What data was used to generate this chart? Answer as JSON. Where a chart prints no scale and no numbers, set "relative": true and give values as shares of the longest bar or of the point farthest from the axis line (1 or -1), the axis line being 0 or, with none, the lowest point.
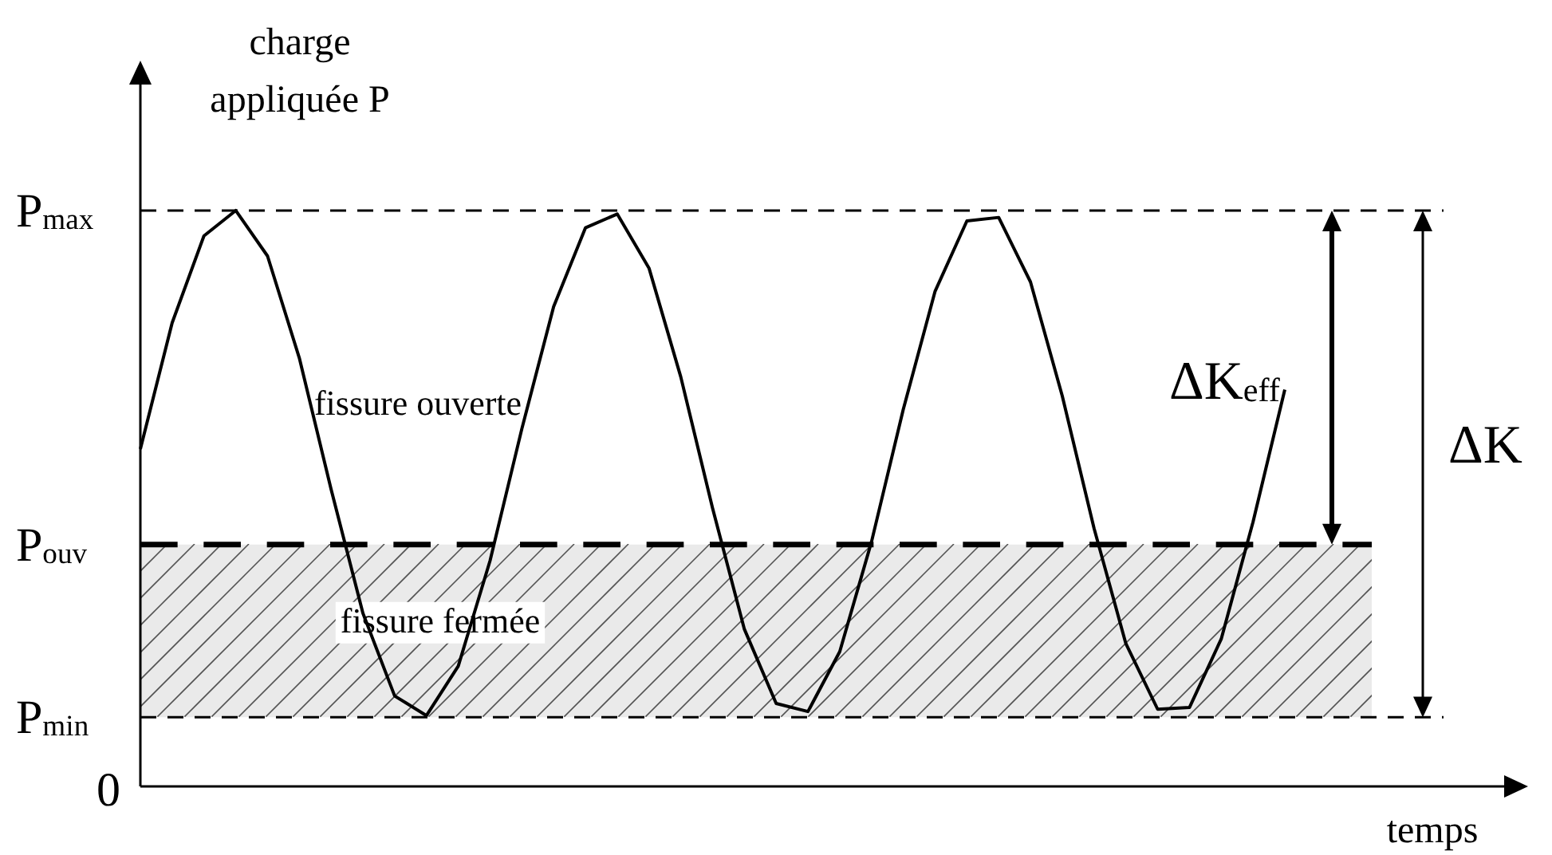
{
  "chart_data": {
    "type": "line",
    "relative": true,
    "xlabel": "temps",
    "ylabel": "charge appliquée P",
    "categories": [
      null,
      null,
      null,
      null,
      null,
      null,
      null,
      null,
      null,
      null,
      null,
      null,
      null,
      null,
      null,
      null,
      null,
      null,
      null,
      null,
      null,
      null,
      null,
      null,
      null,
      null,
      null,
      null,
      null,
      null,
      null,
      null,
      null,
      null,
      null,
      null,
      null,
      null,
      null,
      null,
      null,
      null,
      null,
      null
    ],
    "series": [
      {
        "color": "#000000",
        "values": [
          0.586,
          0.805,
          0.956,
          1,
          0.921,
          0.744,
          0.516,
          0.301,
          0.157,
          0.123,
          0.209,
          0.392,
          0.621,
          0.833,
          0.97,
          0.994,
          0.9,
          0.711,
          0.483,
          0.273,
          0.144,
          0.13,
          0.234,
          0.425,
          0.655,
          0.86,
          0.982,
          0.988,
          0.876,
          0.678,
          0.448,
          0.248,
          0.134,
          0.137,
          0.256,
          0.459,
          0.689,
          null,
          null,
          null,
          null,
          null,
          null,
          null
        ]
      }
    ],
    "ref_lines": [
      {
        "axis": "y",
        "value": 1,
        "label": "P$_{max}$",
        "color": "#000000",
        "line_style": "dashed"
      },
      {
        "axis": "y",
        "value": 0.42,
        "label": "P$_{ouv}$",
        "color": "#000000",
        "line_style": "dashed"
      },
      {
        "axis": "y",
        "value": 0.12,
        "label": "P$_{min}$",
        "color": "#000000",
        "line_style": "dashed"
      }
    ],
    "bands": [
      {
        "axis": "y",
        "from": 0.12,
        "to": 0.42,
        "label": "fissure fermée",
        "color": "#555555"
      }
    ],
    "annotations": [
      "fissure ouverte",
      "ΔK$_{eff}$",
      "ΔK",
      "0"
    ],
    "legend": false,
    "marker": "none",
    "line_style": "solid"
  }
}
